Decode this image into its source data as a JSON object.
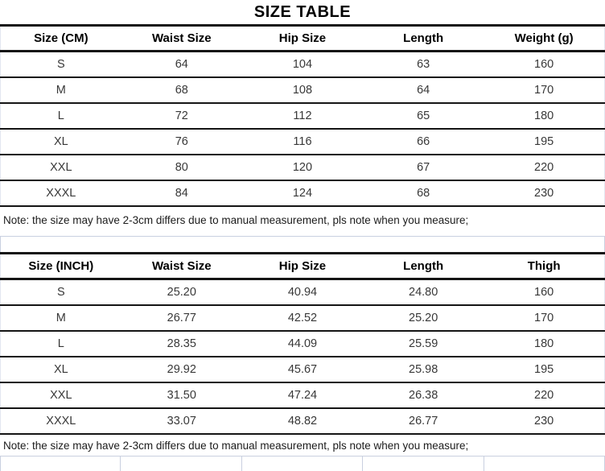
{
  "title": "SIZE TABLE",
  "colors": {
    "rule_dark": "#151515",
    "grid_light": "#c9d0e0",
    "header_text": "#000000",
    "cell_text": "#383838"
  },
  "table_cm": {
    "headers": [
      "Size (CM)",
      "Waist Size",
      "Hip Size",
      "Length",
      "Weight (g)"
    ],
    "rows": [
      [
        "S",
        "64",
        "104",
        "63",
        "160"
      ],
      [
        "M",
        "68",
        "108",
        "64",
        "170"
      ],
      [
        "L",
        "72",
        "112",
        "65",
        "180"
      ],
      [
        "XL",
        "76",
        "116",
        "66",
        "195"
      ],
      [
        "XXL",
        "80",
        "120",
        "67",
        "220"
      ],
      [
        "XXXL",
        "84",
        "124",
        "68",
        "230"
      ]
    ],
    "note": "Note: the size may have 2-3cm differs due to manual measurement, pls note when you measure;"
  },
  "table_inch": {
    "headers": [
      "Size (INCH)",
      "Waist Size",
      "Hip Size",
      "Length",
      "Thigh"
    ],
    "rows": [
      [
        "S",
        "25.20",
        "40.94",
        "24.80",
        "160"
      ],
      [
        "M",
        "26.77",
        "42.52",
        "25.20",
        "170"
      ],
      [
        "L",
        "28.35",
        "44.09",
        "25.59",
        "180"
      ],
      [
        "XL",
        "29.92",
        "45.67",
        "25.98",
        "195"
      ],
      [
        "XXL",
        "31.50",
        "47.24",
        "26.38",
        "220"
      ],
      [
        "XXXL",
        "33.07",
        "48.82",
        "26.77",
        "230"
      ]
    ],
    "note": "Note: the size may have 2-3cm differs due to manual measurement, pls note when you measure;"
  }
}
